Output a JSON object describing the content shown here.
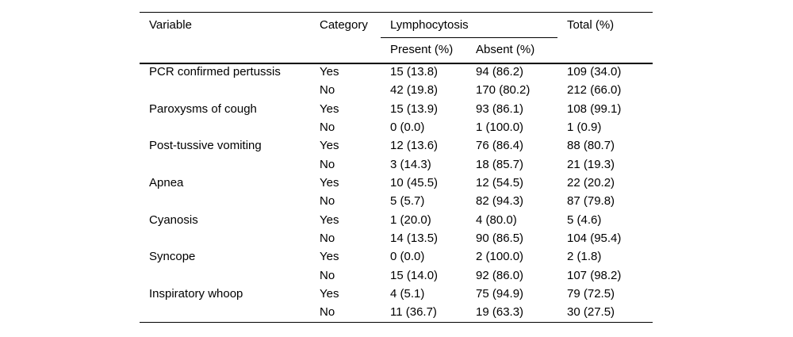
{
  "page": {
    "background": "#ffffff",
    "text_color": "#000000",
    "rule_color": "#000000"
  },
  "table": {
    "headers": {
      "variable": "Variable",
      "category": "Category",
      "lymphocytosis": "Lymphocytosis",
      "present": "Present (%)",
      "absent": "Absent (%)",
      "total": "Total (%)"
    },
    "groups": [
      {
        "variable": "PCR confirmed pertussis",
        "rows": [
          {
            "category": "Yes",
            "present": "15 (13.8)",
            "absent": "94 (86.2)",
            "total": "109 (34.0)"
          },
          {
            "category": "No",
            "present": "42 (19.8)",
            "absent": "170 (80.2)",
            "total": "212 (66.0)"
          }
        ]
      },
      {
        "variable": "Paroxysms of cough",
        "rows": [
          {
            "category": "Yes",
            "present": "15 (13.9)",
            "absent": "93 (86.1)",
            "total": "108 (99.1)"
          },
          {
            "category": "No",
            "present": "0 (0.0)",
            "absent": "1 (100.0)",
            "total": "1 (0.9)"
          }
        ]
      },
      {
        "variable": "Post-tussive vomiting",
        "rows": [
          {
            "category": "Yes",
            "present": "12 (13.6)",
            "absent": "76 (86.4)",
            "total": "88 (80.7)"
          },
          {
            "category": "No",
            "present": "3 (14.3)",
            "absent": "18 (85.7)",
            "total": "21 (19.3)"
          }
        ]
      },
      {
        "variable": "Apnea",
        "rows": [
          {
            "category": "Yes",
            "present": "10 (45.5)",
            "absent": "12 (54.5)",
            "total": "22 (20.2)"
          },
          {
            "category": "No",
            "present": "5 (5.7)",
            "absent": "82 (94.3)",
            "total": "87 (79.8)"
          }
        ]
      },
      {
        "variable": "Cyanosis",
        "rows": [
          {
            "category": "Yes",
            "present": "1 (20.0)",
            "absent": "4 (80.0)",
            "total": "5 (4.6)"
          },
          {
            "category": "No",
            "present": "14 (13.5)",
            "absent": "90 (86.5)",
            "total": "104 (95.4)"
          }
        ]
      },
      {
        "variable": "Syncope",
        "rows": [
          {
            "category": "Yes",
            "present": "0 (0.0)",
            "absent": "2 (100.0)",
            "total": "2 (1.8)"
          },
          {
            "category": "No",
            "present": "15 (14.0)",
            "absent": "92 (86.0)",
            "total": "107 (98.2)"
          }
        ]
      },
      {
        "variable": "Inspiratory whoop",
        "rows": [
          {
            "category": "Yes",
            "present": "4 (5.1)",
            "absent": "75 (94.9)",
            "total": "79 (72.5)"
          },
          {
            "category": "No",
            "present": "11 (36.7)",
            "absent": "19 (63.3)",
            "total": "30 (27.5)"
          }
        ]
      }
    ]
  }
}
